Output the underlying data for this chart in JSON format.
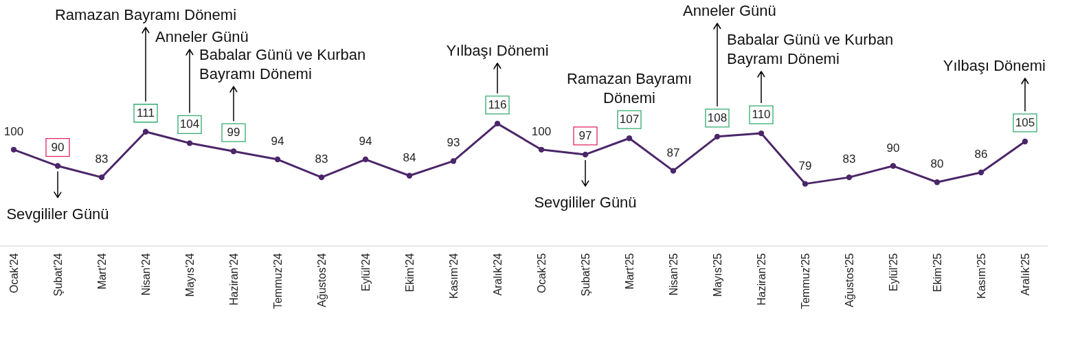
{
  "chart_data": {
    "type": "line",
    "categories": [
      "Ocak'24",
      "Şubat'24",
      "Mart'24",
      "Nisan'24",
      "Mayıs'24",
      "Haziran'24",
      "Temmuz'24",
      "Ağustos'24",
      "Eylül'24",
      "Ekim'24",
      "Kasım'24",
      "Aralık'24",
      "Ocak'25",
      "Şubat'25",
      "Mart'25",
      "Nisan'25",
      "Mayıs'25",
      "Haziran'25",
      "Temmuz'25",
      "Ağustos'25",
      "Eylül'25",
      "Ekim'25",
      "Kasım'25",
      "Aralık'25"
    ],
    "series": [
      {
        "color": "#4b2669",
        "values": [
          100,
          90,
          83,
          111,
          104,
          99,
          94,
          83,
          94,
          84,
          93,
          116,
          100,
          97,
          107,
          87,
          108,
          110,
          79,
          83,
          90,
          80,
          86,
          105
        ]
      }
    ],
    "data_labels": true,
    "marker": "circle",
    "annotations": [
      "Sevgililer Günü",
      "Ramazan Bayramı Dönemi",
      "Anneler Günü",
      "Babalar Günü ve Kurban\nBayramı Dönemi",
      "Yılbaşı Dönemi",
      "Sevgililer Günü",
      "Ramazan Bayramı\nDönemi",
      "Anneler Günü",
      "Babalar Günü ve Kurban\nBayramı Dönemi",
      "Yılbaşı Dönemi"
    ]
  }
}
